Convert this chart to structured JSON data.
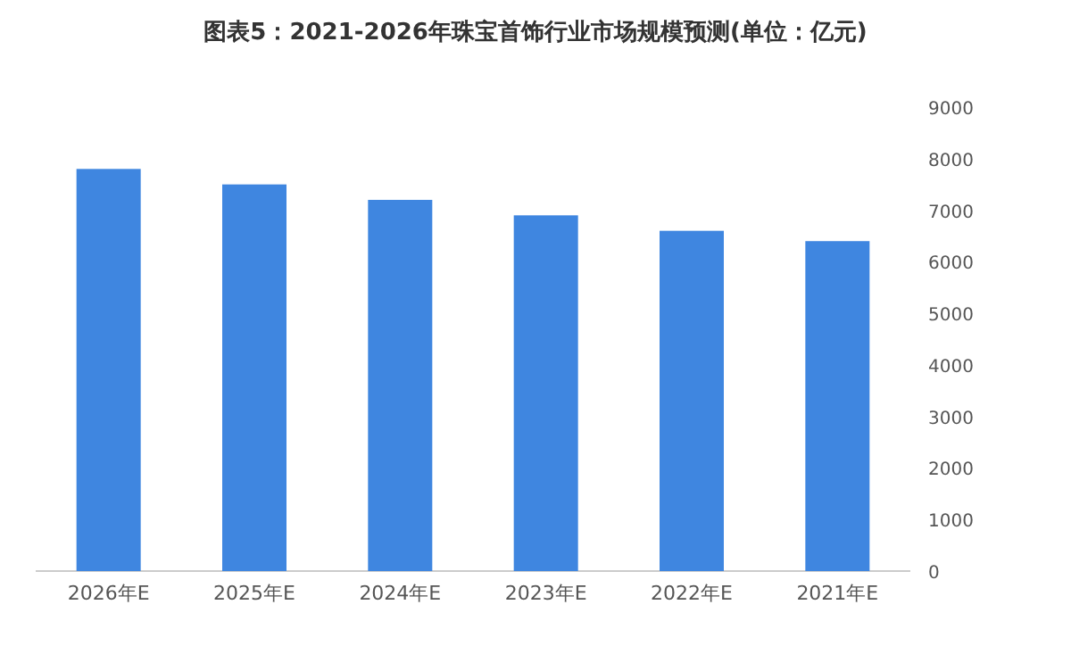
{
  "chart_data": {
    "type": "bar",
    "title": "图表5：2021-2026年珠宝首饰行业市场规模预测(单位：亿元)",
    "categories": [
      "2026年E",
      "2025年E",
      "2024年E",
      "2023年E",
      "2022年E",
      "2021年E"
    ],
    "values": [
      7800,
      7500,
      7200,
      6900,
      6600,
      6400
    ],
    "color": "#3f86e0",
    "ylim": [
      0,
      9000
    ],
    "yticks": [
      0,
      1000,
      2000,
      3000,
      4000,
      5000,
      6000,
      7000,
      8000,
      9000
    ],
    "grid": false
  }
}
